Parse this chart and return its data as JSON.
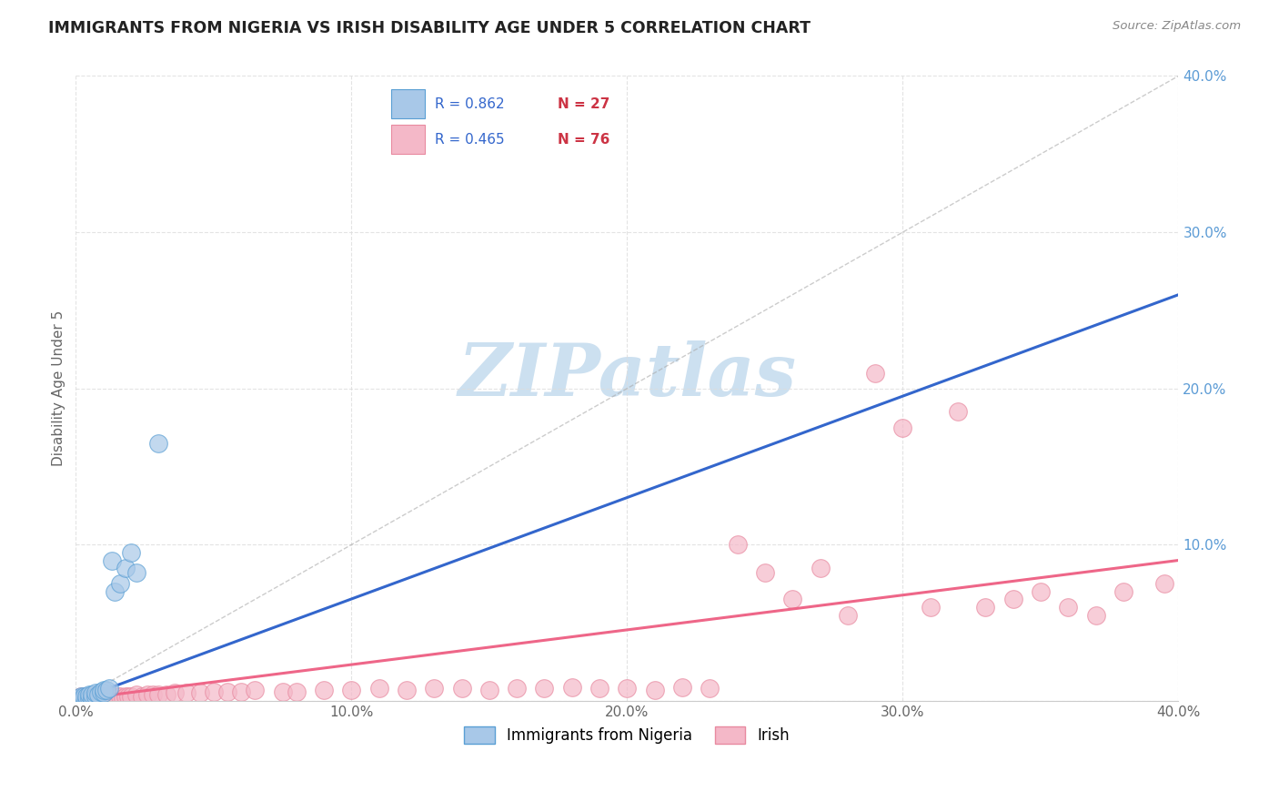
{
  "title": "IMMIGRANTS FROM NIGERIA VS IRISH DISABILITY AGE UNDER 5 CORRELATION CHART",
  "source": "Source: ZipAtlas.com",
  "ylabel": "Disability Age Under 5",
  "xlim": [
    0.0,
    0.4
  ],
  "ylim": [
    0.0,
    0.4
  ],
  "xticks": [
    0.0,
    0.1,
    0.2,
    0.3,
    0.4
  ],
  "yticks": [
    0.0,
    0.1,
    0.2,
    0.3,
    0.4
  ],
  "xtick_labels": [
    "0.0%",
    "10.0%",
    "20.0%",
    "30.0%",
    "40.0%"
  ],
  "ytick_labels": [
    "",
    "10.0%",
    "20.0%",
    "30.0%",
    "40.0%"
  ],
  "legend1_r": "R = 0.862",
  "legend1_n": "N = 27",
  "legend2_r": "R = 0.465",
  "legend2_n": "N = 76",
  "blue_color": "#a8c8e8",
  "blue_edge_color": "#5a9fd4",
  "pink_color": "#f4b8c8",
  "pink_edge_color": "#e88aa0",
  "blue_line_color": "#3366cc",
  "pink_line_color": "#ee6688",
  "diag_color": "#aaaaaa",
  "watermark_color": "#cce0f0",
  "background_color": "#ffffff",
  "grid_color": "#dddddd",
  "title_color": "#222222",
  "source_color": "#888888",
  "ylabel_color": "#666666",
  "tick_color_y": "#5b9bd5",
  "tick_color_x": "#666666",
  "legend_text_color": "#3366cc",
  "legend_n_color": "#cc3344",
  "blue_x": [
    0.001,
    0.001,
    0.002,
    0.002,
    0.003,
    0.003,
    0.004,
    0.004,
    0.005,
    0.005,
    0.006,
    0.006,
    0.007,
    0.007,
    0.008,
    0.009,
    0.01,
    0.01,
    0.011,
    0.012,
    0.013,
    0.014,
    0.016,
    0.018,
    0.02,
    0.022,
    0.03
  ],
  "blue_y": [
    0.001,
    0.002,
    0.001,
    0.003,
    0.002,
    0.003,
    0.001,
    0.003,
    0.002,
    0.004,
    0.002,
    0.004,
    0.003,
    0.005,
    0.004,
    0.006,
    0.005,
    0.007,
    0.007,
    0.008,
    0.09,
    0.07,
    0.075,
    0.085,
    0.095,
    0.082,
    0.165
  ],
  "pink_x": [
    0.001,
    0.001,
    0.002,
    0.002,
    0.002,
    0.003,
    0.003,
    0.004,
    0.004,
    0.005,
    0.005,
    0.006,
    0.006,
    0.007,
    0.007,
    0.008,
    0.008,
    0.009,
    0.01,
    0.01,
    0.011,
    0.012,
    0.013,
    0.014,
    0.015,
    0.016,
    0.017,
    0.018,
    0.019,
    0.02,
    0.022,
    0.024,
    0.026,
    0.028,
    0.03,
    0.033,
    0.036,
    0.04,
    0.045,
    0.05,
    0.055,
    0.06,
    0.065,
    0.075,
    0.08,
    0.09,
    0.1,
    0.11,
    0.12,
    0.13,
    0.14,
    0.15,
    0.16,
    0.17,
    0.18,
    0.19,
    0.2,
    0.21,
    0.22,
    0.23,
    0.24,
    0.25,
    0.26,
    0.27,
    0.28,
    0.29,
    0.3,
    0.31,
    0.32,
    0.33,
    0.34,
    0.35,
    0.36,
    0.37,
    0.38,
    0.395
  ],
  "pink_y": [
    0.001,
    0.002,
    0.001,
    0.002,
    0.003,
    0.001,
    0.002,
    0.001,
    0.003,
    0.002,
    0.003,
    0.001,
    0.002,
    0.002,
    0.003,
    0.001,
    0.003,
    0.002,
    0.002,
    0.003,
    0.003,
    0.002,
    0.003,
    0.002,
    0.003,
    0.003,
    0.002,
    0.003,
    0.003,
    0.003,
    0.004,
    0.003,
    0.004,
    0.004,
    0.004,
    0.004,
    0.005,
    0.005,
    0.005,
    0.006,
    0.006,
    0.006,
    0.007,
    0.006,
    0.006,
    0.007,
    0.007,
    0.008,
    0.007,
    0.008,
    0.008,
    0.007,
    0.008,
    0.008,
    0.009,
    0.008,
    0.008,
    0.007,
    0.009,
    0.008,
    0.1,
    0.082,
    0.065,
    0.085,
    0.055,
    0.21,
    0.175,
    0.06,
    0.185,
    0.06,
    0.065,
    0.07,
    0.06,
    0.055,
    0.07,
    0.075
  ],
  "blue_trendline": [
    0.001,
    0.001,
    0.4,
    0.26
  ],
  "pink_trendline": [
    0.0,
    0.001,
    0.4,
    0.09
  ]
}
